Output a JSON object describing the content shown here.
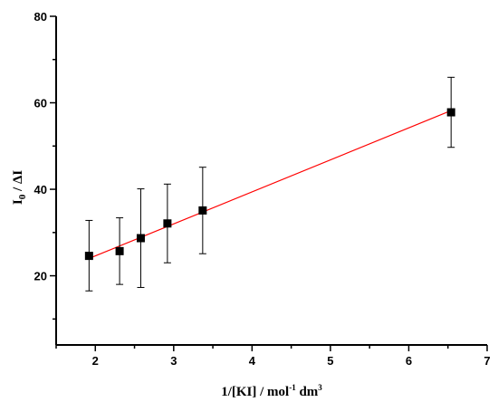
{
  "chart_data": {
    "type": "scatter",
    "title": "",
    "xlabel": {
      "main": "1/[KI] / mol",
      "sup": "-1",
      "rest": " dm",
      "sup2": "3"
    },
    "ylabel": {
      "main": "I",
      "sub": "0",
      "rest": " / ΔI"
    },
    "xlim": [
      1.5,
      7.0
    ],
    "ylim": [
      4,
      80
    ],
    "x_ticks": [
      2,
      3,
      4,
      5,
      6,
      7
    ],
    "y_ticks": [
      20,
      40,
      60,
      80
    ],
    "grid": false,
    "series": [
      {
        "marker": "square",
        "color": "#000000",
        "points": [
          {
            "x": 1.92,
            "y": 24.6,
            "err_low": 16.5,
            "err_high": 32.8
          },
          {
            "x": 2.31,
            "y": 25.7,
            "err_low": 18.0,
            "err_high": 33.4
          },
          {
            "x": 2.58,
            "y": 28.7,
            "err_low": 17.3,
            "err_high": 40.1
          },
          {
            "x": 2.92,
            "y": 32.1,
            "err_low": 23.0,
            "err_high": 41.2
          },
          {
            "x": 3.37,
            "y": 35.1,
            "err_low": 25.1,
            "err_high": 45.1
          },
          {
            "x": 6.54,
            "y": 57.8,
            "err_low": 49.7,
            "err_high": 65.9
          }
        ]
      }
    ],
    "fit_line": {
      "color": "#ff0000",
      "x": [
        1.92,
        6.54
      ],
      "y": [
        24.0,
        58.2
      ]
    }
  }
}
